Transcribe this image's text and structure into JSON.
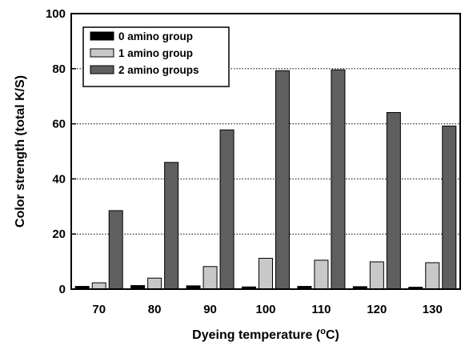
{
  "chart_data": {
    "type": "bar",
    "xlabel": "Dyeing temperature (",
    "xlabel_sup": "o",
    "xlabel_suffix": "C)",
    "ylabel": "Color strength (total K/S)",
    "ylim": [
      0,
      100
    ],
    "yticks": [
      "0",
      "20",
      "40",
      "60",
      "80",
      "100"
    ],
    "grid": "horizontal dotted",
    "legend_position": "top-left",
    "categories": [
      "70",
      "80",
      "90",
      "100",
      "110",
      "120",
      "130"
    ],
    "series": [
      {
        "name": "0 amino group",
        "color": "#000000",
        "values": [
          1.0,
          1.3,
          1.2,
          0.8,
          1.0,
          0.9,
          0.7
        ]
      },
      {
        "name": "1 amino group",
        "color": "#c8c8c8",
        "values": [
          2.3,
          4.0,
          8.2,
          11.2,
          10.5,
          9.9,
          9.6
        ]
      },
      {
        "name": "2 amino groups",
        "color": "#5f5f5f",
        "values": [
          28.5,
          46.0,
          57.8,
          79.3,
          79.6,
          64.1,
          59.2
        ]
      }
    ]
  }
}
